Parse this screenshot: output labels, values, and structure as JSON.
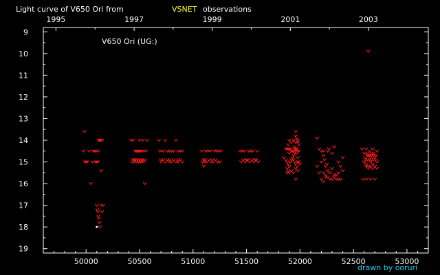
{
  "chart_data": {
    "type": "scatter",
    "title_parts": {
      "prefix": "Light curve of V650 Ori from",
      "highlight": "VSNET",
      "suffix": "observations"
    },
    "highlight_color": "#ffff33",
    "series_color": "#ff1a1a",
    "star_label": "V650 Ori (UG:)",
    "credit": "drawn by ooruri",
    "credit_color": "#22d3ee",
    "top_axis_years": [
      "1995",
      "1997",
      "1999",
      "2001",
      "2003"
    ],
    "top_axis_year_jd": [
      49718,
      50449,
      51179,
      51910,
      52640
    ],
    "bottom_ticks": [
      "50000",
      "50500",
      "51000",
      "51500",
      "52000",
      "52500",
      "53000"
    ],
    "y_ticks": [
      "9",
      "10",
      "11",
      "12",
      "13",
      "14",
      "15",
      "16",
      "17",
      "18",
      "19"
    ],
    "xlim": [
      49600,
      53200
    ],
    "ylim": [
      19.2,
      8.8
    ],
    "y_inverted": true,
    "series": [
      {
        "x": [
          49975,
          49985,
          49990,
          50000,
          50010,
          50030,
          50045,
          50060,
          50070,
          50080,
          50095,
          50100,
          50110,
          50115,
          50120,
          50125,
          50130,
          50135,
          50140,
          50150,
          50160,
          50090,
          50100,
          50105,
          50110,
          50115,
          50120,
          50125,
          50130,
          50140,
          50150,
          50420,
          50430,
          50440,
          50450,
          50460,
          50470,
          50480,
          50490,
          50500,
          50510,
          50520,
          50530,
          50540,
          50550,
          50560,
          50570,
          50450,
          50460,
          50470,
          50480,
          50490,
          50500,
          50510,
          50520,
          50530,
          50540,
          50500,
          50440,
          50550,
          50520,
          50680,
          50690,
          50700,
          50720,
          50740,
          50760,
          50780,
          50800,
          50820,
          50840,
          50860,
          50880,
          50900,
          50700,
          50720,
          50740,
          50760,
          50780,
          50800,
          50820,
          50840,
          50860,
          50880,
          50900,
          50720,
          50780,
          50860,
          51080,
          51100,
          51120,
          51140,
          51160,
          51180,
          51200,
          51220,
          51240,
          51260,
          51090,
          51110,
          51130,
          51150,
          51170,
          51190,
          51210,
          51230,
          51250,
          51100,
          51110,
          51440,
          51460,
          51480,
          51500,
          51520,
          51540,
          51560,
          51580,
          51600,
          51450,
          51470,
          51490,
          51510,
          51530,
          51550,
          51570,
          51590,
          51610,
          51850,
          51870,
          51880,
          51890,
          51900,
          51910,
          51920,
          51930,
          51940,
          51950,
          51960,
          51970,
          51980,
          51990,
          52000,
          51870,
          51880,
          51890,
          51900,
          51910,
          51920,
          51930,
          51940,
          51950,
          51960,
          51970,
          51980,
          51990,
          51880,
          51890,
          51900,
          51910,
          51920,
          51930,
          51940,
          51950,
          51960,
          51970,
          51980,
          51890,
          51900,
          51920,
          51940,
          51960,
          51980,
          51880,
          51900,
          51920,
          51940,
          51960,
          51980,
          51900,
          51940,
          51960,
          51980,
          51990,
          51980,
          51960,
          51950,
          51970,
          51960,
          52160,
          52180,
          52200,
          52220,
          52240,
          52260,
          52280,
          52300,
          52320,
          52340,
          52360,
          52380,
          52400,
          52200,
          52220,
          52240,
          52260,
          52280,
          52300,
          52320,
          52340,
          52360,
          52380,
          52220,
          52240,
          52260,
          52280,
          52300,
          52320,
          52340,
          52360,
          52380,
          52400,
          52160,
          52180,
          52200,
          52220,
          52230,
          52250,
          52270,
          52580,
          52600,
          52610,
          52620,
          52630,
          52640,
          52650,
          52660,
          52670,
          52680,
          52690,
          52700,
          52710,
          52720,
          52600,
          52620,
          52640,
          52660,
          52680,
          52700,
          52720,
          52610,
          52630,
          52650,
          52670,
          52690,
          52710,
          52620,
          52640,
          52660,
          52680,
          52700,
          52720,
          52630,
          52650,
          52670,
          52690,
          52710,
          52590,
          52620,
          52660,
          52700,
          52640
        ],
        "y": [
          14.5,
          13.6,
          15.0,
          15.0,
          15.0,
          14.5,
          16.0,
          15.0,
          14.5,
          14.5,
          14.5,
          15.0,
          15.0,
          14.5,
          14.0,
          14.0,
          14.0,
          14.0,
          15.4,
          14.0,
          17.0,
          15.0,
          17.0,
          17.2,
          17.3,
          17.5,
          17.6,
          17.8,
          18.0,
          17.0,
          17.3,
          14.0,
          15.0,
          14.9,
          14.9,
          14.5,
          14.5,
          14.5,
          14.5,
          14.0,
          14.5,
          14.5,
          14.0,
          14.5,
          14.9,
          14.5,
          14.0,
          15.0,
          14.9,
          15.0,
          14.9,
          15.0,
          14.9,
          15.0,
          15.0,
          14.9,
          15.0,
          14.5,
          14.0,
          16.0,
          14.9,
          14.0,
          14.5,
          14.9,
          14.5,
          14.0,
          14.5,
          14.9,
          14.5,
          14.5,
          14.0,
          14.5,
          14.5,
          14.5,
          15.0,
          14.9,
          15.0,
          14.9,
          15.0,
          15.0,
          14.9,
          15.0,
          15.0,
          14.9,
          15.0,
          14.5,
          14.5,
          14.9,
          14.5,
          14.9,
          14.5,
          14.5,
          14.5,
          14.9,
          14.5,
          14.5,
          14.5,
          14.5,
          15.0,
          15.0,
          15.0,
          14.9,
          15.0,
          15.0,
          14.9,
          15.0,
          15.0,
          15.2,
          14.9,
          14.5,
          14.5,
          14.5,
          14.9,
          14.5,
          14.5,
          14.5,
          14.9,
          14.5,
          15.0,
          14.9,
          15.0,
          14.9,
          15.0,
          14.9,
          15.0,
          14.9,
          15.0,
          14.8,
          14.9,
          15.0,
          15.1,
          15.2,
          15.0,
          14.9,
          14.8,
          14.7,
          14.6,
          14.5,
          14.6,
          14.8,
          15.0,
          15.1,
          14.4,
          14.4,
          14.4,
          14.4,
          14.4,
          14.5,
          14.5,
          14.5,
          14.4,
          14.4,
          14.4,
          14.5,
          14.5,
          15.3,
          15.4,
          15.2,
          15.0,
          14.9,
          14.8,
          14.9,
          15.0,
          15.1,
          15.2,
          15.0,
          14.2,
          14.0,
          14.1,
          14.0,
          14.1,
          14.0,
          15.5,
          15.5,
          15.4,
          15.5,
          15.3,
          15.4,
          14.6,
          14.0,
          13.8,
          14.1,
          14.2,
          14.0,
          13.6,
          14.3,
          13.9,
          15.8,
          15.2,
          15.5,
          15.0,
          14.5,
          15.2,
          14.5,
          15.5,
          14.6,
          14.3,
          15.8,
          15.0,
          15.2,
          14.8,
          15.8,
          15.9,
          15.7,
          15.4,
          15.5,
          15.3,
          15.6,
          15.6,
          15.5,
          15.8,
          15.5,
          15.6,
          15.7,
          15.8,
          15.8,
          15.7,
          15.6,
          15.8,
          15.8,
          15.4,
          13.9,
          14.4,
          14.5,
          14.7,
          14.9,
          15.1,
          14.4,
          14.4,
          14.6,
          14.8,
          14.4,
          14.6,
          14.7,
          14.5,
          14.8,
          14.6,
          14.4,
          14.6,
          14.8,
          14.7,
          14.5,
          15.0,
          15.1,
          15.2,
          15.0,
          15.1,
          15.2,
          15.0,
          14.9,
          14.9,
          14.9,
          14.9,
          14.9,
          14.9,
          15.2,
          15.3,
          15.2,
          15.3,
          15.2,
          15.3,
          14.7,
          14.7,
          14.7,
          14.7,
          14.7,
          15.8,
          15.8,
          15.8,
          15.8,
          9.9
        ]
      }
    ],
    "faint_points": [
      {
        "x": 50100,
        "y": 18.0
      }
    ]
  }
}
